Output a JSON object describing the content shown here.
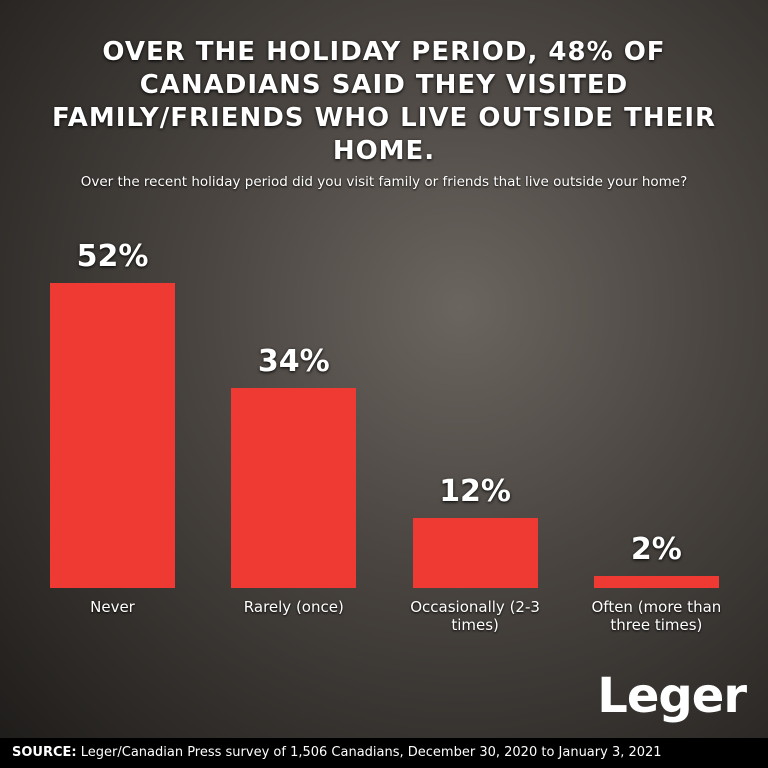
{
  "chart_data": {
    "type": "bar",
    "title": "OVER THE HOLIDAY PERIOD, 48% OF CANADIANS SAID THEY VISITED FAMILY/FRIENDS WHO LIVE OUTSIDE THEIR HOME.",
    "subtitle": "Over the recent holiday period did you visit family or friends that live outside your home?",
    "categories": [
      "Never",
      "Rarely (once)",
      "Occasionally (2-3 times)",
      "Often (more than three times)"
    ],
    "values": [
      52,
      34,
      12,
      2
    ],
    "value_labels": [
      "52%",
      "34%",
      "12%",
      "2%"
    ],
    "color": "#ee3a32",
    "logo": "Leger",
    "source": {
      "label": "SOURCE:",
      "text": "Leger/Canadian Press survey of 1,506 Canadians, December 30, 2020 to January 3, 2021"
    }
  }
}
